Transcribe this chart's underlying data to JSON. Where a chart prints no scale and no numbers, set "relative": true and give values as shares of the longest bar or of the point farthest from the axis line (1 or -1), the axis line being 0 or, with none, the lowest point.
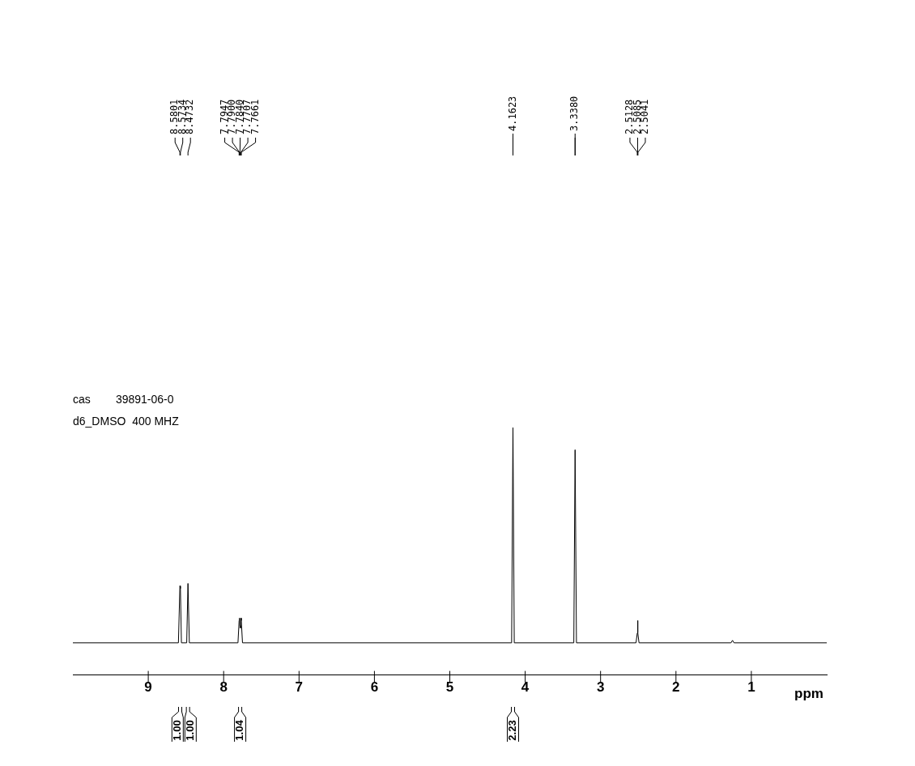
{
  "chart_data": {
    "type": "line",
    "relative": true,
    "xlabel": "ppm",
    "color": "#000000",
    "marker": "none",
    "grid": false,
    "legend": false,
    "tick_labels": "x",
    "xlim": [
      10,
      0
    ],
    "xticks": [
      9,
      8,
      7,
      6,
      5,
      4,
      3,
      2,
      1
    ],
    "x": [
      10,
      8.6,
      8.5801,
      8.5734,
      8.56,
      8.49,
      8.4732,
      8.455,
      7.81,
      7.7947,
      7.79,
      7.784,
      7.778,
      7.7707,
      7.7661,
      7.75,
      4.18,
      4.1623,
      4.145,
      3.355,
      3.338,
      3.32,
      2.53,
      2.5128,
      2.5085,
      2.5041,
      2.49,
      1.27,
      1.25,
      1.23,
      0
    ],
    "values": [
      0.13,
      0.13,
      0.36,
      0.35,
      0.13,
      0.13,
      0.37,
      0.13,
      0.13,
      0.22,
      0.23,
      0.2,
      0.19,
      0.23,
      0.22,
      0.13,
      0.13,
      1,
      0.13,
      0.13,
      0.91,
      0.13,
      0.13,
      0.17,
      0.22,
      0.17,
      0.13,
      0.13,
      0.14,
      0.13,
      0.13
    ],
    "annotations": [
      "cas        39891-06-0",
      "d6_DMSO  400 MHZ",
      "8.5801",
      "8.5734",
      "8.4732",
      "7.7947",
      "7.7900",
      "7.7840",
      "7.7707",
      "7.7661",
      "4.1623",
      "3.3380",
      "2.5128",
      "2.5085",
      "2.5041",
      "1.00",
      "1.00",
      "1.04",
      "2.23"
    ]
  }
}
